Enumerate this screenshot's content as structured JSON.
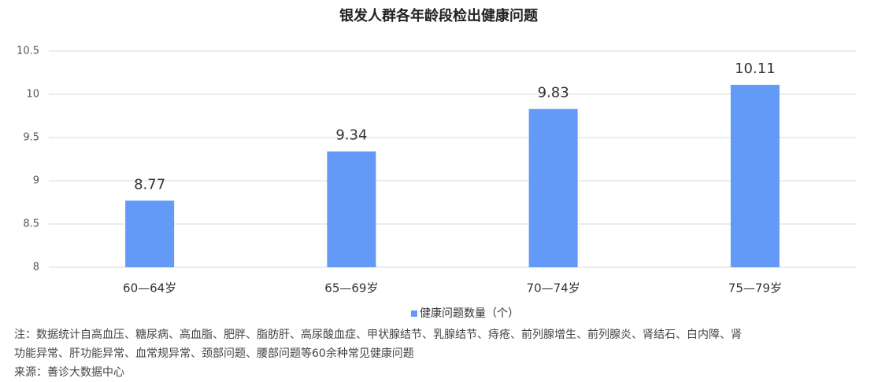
{
  "chart_data": {
    "type": "bar",
    "title": "银发人群各年龄段检出健康问题",
    "categories": [
      "60—64岁",
      "65—69岁",
      "70—74岁",
      "75—79岁"
    ],
    "series": [
      {
        "name": "健康问题数量（个）",
        "color": "#6399f7",
        "values": [
          8.77,
          9.34,
          9.83,
          10.11
        ]
      }
    ],
    "ylim": [
      8,
      10.5
    ],
    "yticks": [
      8,
      8.5,
      9,
      9.5,
      10,
      10.5
    ],
    "grid": true,
    "legend": "bottom",
    "notes": [
      "注：数据统计自高血压、糖尿病、高血脂、肥胖、脂肪肝、高尿酸血症、甲状腺结节、乳腺结节、痔疮、前列腺增生、前列腺炎、肾结石、白内障、肾",
      "功能异常、肝功能异常、血常规异常、颈部问题、腰部问题等60余种常见健康问题"
    ],
    "source": "来源：善诊大数据中心"
  }
}
